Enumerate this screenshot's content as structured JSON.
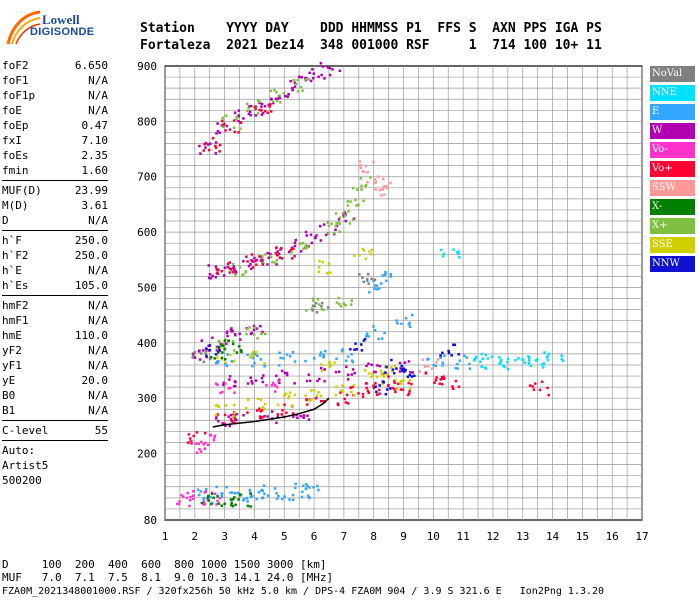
{
  "logo": {
    "line1": "Lowell",
    "line2": "DIGISONDE"
  },
  "header": {
    "labels": "Station    YYYY DAY    DDD HHMMSS P1  FFS S  AXN PPS IGA PS",
    "values": "Fortaleza  2021 Dez14  348 001000 RSF     1  714 100 10+ 11"
  },
  "params": {
    "group1": [
      {
        "k": "foF2",
        "v": "6.650"
      },
      {
        "k": "foF1",
        "v": "N/A"
      },
      {
        "k": "foF1p",
        "v": "N/A"
      },
      {
        "k": "foE",
        "v": "N/A"
      },
      {
        "k": "foEp",
        "v": "0.47"
      },
      {
        "k": "fxI",
        "v": "7.10"
      },
      {
        "k": "foEs",
        "v": "2.35"
      },
      {
        "k": "fmin",
        "v": "1.60"
      }
    ],
    "group2": [
      {
        "k": "MUF(D)",
        "v": "23.99"
      },
      {
        "k": "M(D)",
        "v": "3.61"
      },
      {
        "k": "D",
        "v": "N/A"
      }
    ],
    "group3": [
      {
        "k": "h`F",
        "v": "250.0"
      },
      {
        "k": "h`F2",
        "v": "250.0"
      },
      {
        "k": "h`E",
        "v": "N/A"
      },
      {
        "k": "h`Es",
        "v": "105.0"
      }
    ],
    "group4": [
      {
        "k": "hmF2",
        "v": "N/A"
      },
      {
        "k": "hmF1",
        "v": "N/A"
      },
      {
        "k": "hmE",
        "v": "110.0"
      },
      {
        "k": "yF2",
        "v": "N/A"
      },
      {
        "k": "yF1",
        "v": "N/A"
      },
      {
        "k": "yE",
        "v": "20.0"
      },
      {
        "k": "B0",
        "v": "N/A"
      },
      {
        "k": "B1",
        "v": "N/A"
      }
    ],
    "group5": [
      {
        "k": "C-level",
        "v": "55"
      }
    ],
    "group6": [
      {
        "k": "Auto:",
        "v": ""
      },
      {
        "k": "Artist5",
        "v": ""
      },
      {
        "k": "500200",
        "v": ""
      }
    ]
  },
  "legend": [
    {
      "label": "NoVal",
      "color": "#808080"
    },
    {
      "label": "NNE",
      "color": "#00e0ff"
    },
    {
      "label": "E",
      "color": "#33a6ff"
    },
    {
      "label": "W",
      "color": "#b000b0"
    },
    {
      "label": "Vo-",
      "color": "#ff33cc"
    },
    {
      "label": "Vo+",
      "color": "#ff0033"
    },
    {
      "label": "SSW",
      "color": "#ff9999"
    },
    {
      "label": "X-",
      "color": "#008000"
    },
    {
      "label": "X+",
      "color": "#80c040"
    },
    {
      "label": "SSE",
      "color": "#d0d000"
    },
    {
      "label": "NNW",
      "color": "#1010d0"
    }
  ],
  "footer": {
    "line1": "D     100  200  400  600  800 1000 1500 3000 [km]",
    "line2": "MUF   7.0  7.1  7.5  8.1  9.0 10.3 14.1 24.0 [MHz]",
    "line3": "FZA0M_2021348001000.RSF / 320fx256h 50 kHz 5.0 km / DPS-4 FZA0M 904 / 3.9 S 321.6 E   Ion2Png 1.3.20"
  },
  "chart_data": {
    "type": "scatter",
    "title": "",
    "xlabel": "",
    "ylabel": "",
    "xlim": [
      1,
      17
    ],
    "ylim": [
      80,
      900
    ],
    "xticks": [
      1,
      2,
      3,
      4,
      5,
      6,
      7,
      8,
      9,
      10,
      11,
      12,
      13,
      14,
      15,
      16,
      17
    ],
    "yticks": [
      80,
      200,
      300,
      400,
      500,
      600,
      700,
      800,
      900
    ],
    "grid": true,
    "series": [
      {
        "label": "W",
        "color": "#b000b0",
        "points": [
          [
            2.4,
            755
          ],
          [
            3.0,
            790
          ],
          [
            3.5,
            810
          ],
          [
            4.0,
            825
          ],
          [
            4.5,
            840
          ],
          [
            5.0,
            855
          ],
          [
            5.5,
            870
          ],
          [
            6.0,
            885
          ],
          [
            6.5,
            895
          ],
          [
            2.5,
            530
          ],
          [
            3.0,
            535
          ],
          [
            3.5,
            540
          ],
          [
            4.0,
            548
          ],
          [
            4.5,
            556
          ],
          [
            5.0,
            565
          ],
          [
            5.5,
            578
          ],
          [
            6.0,
            592
          ],
          [
            6.5,
            608
          ],
          [
            7.0,
            625
          ],
          [
            2.5,
            400
          ],
          [
            3.0,
            410
          ],
          [
            3.5,
            418
          ],
          [
            4.0,
            425
          ],
          [
            2.2,
            380
          ],
          [
            3.0,
            330
          ],
          [
            4.0,
            335
          ],
          [
            5.0,
            340
          ],
          [
            6.0,
            345
          ],
          [
            7.0,
            348
          ],
          [
            8.0,
            355
          ],
          [
            9.0,
            360
          ],
          [
            2.8,
            258
          ],
          [
            3.5,
            262
          ],
          [
            4.5,
            268
          ],
          [
            5.5,
            275
          ]
        ]
      },
      {
        "label": "X+",
        "color": "#80c040",
        "points": [
          [
            3.2,
            800
          ],
          [
            4.0,
            828
          ],
          [
            4.8,
            848
          ],
          [
            5.5,
            866
          ],
          [
            3.5,
            535
          ],
          [
            4.5,
            552
          ],
          [
            5.5,
            572
          ],
          [
            6.5,
            610
          ],
          [
            7.0,
            630
          ],
          [
            7.3,
            650
          ],
          [
            7.6,
            690
          ],
          [
            3.0,
            400
          ],
          [
            4.0,
            420
          ],
          [
            6.0,
            470
          ],
          [
            7.0,
            480
          ]
        ]
      },
      {
        "label": "Vo+",
        "color": "#ff0033",
        "points": [
          [
            2.5,
            760
          ],
          [
            3.2,
            795
          ],
          [
            4.2,
            830
          ],
          [
            3.0,
            540
          ],
          [
            4.0,
            550
          ],
          [
            5.0,
            562
          ],
          [
            3.0,
            265
          ],
          [
            4.0,
            272
          ],
          [
            5.0,
            280
          ],
          [
            6.0,
            290
          ],
          [
            7.0,
            300
          ],
          [
            7.5,
            310
          ],
          [
            8.0,
            320
          ],
          [
            8.5,
            330
          ],
          [
            9.0,
            320
          ],
          [
            10.0,
            340
          ],
          [
            10.5,
            330
          ],
          [
            2.0,
            230
          ],
          [
            13.5,
            320
          ]
        ]
      },
      {
        "label": "SSE",
        "color": "#d0d000",
        "points": [
          [
            3.0,
            280
          ],
          [
            4.0,
            290
          ],
          [
            5.0,
            300
          ],
          [
            6.0,
            310
          ],
          [
            7.0,
            320
          ],
          [
            8.0,
            340
          ],
          [
            8.5,
            350
          ],
          [
            9.0,
            330
          ],
          [
            3.0,
            372
          ],
          [
            4.0,
            375
          ],
          [
            6.5,
            360
          ],
          [
            7.6,
            560
          ],
          [
            6.4,
            540
          ]
        ]
      },
      {
        "label": "E",
        "color": "#33a6ff",
        "points": [
          [
            3.0,
            370
          ],
          [
            4.0,
            372
          ],
          [
            5.0,
            373
          ],
          [
            6.0,
            375
          ],
          [
            7.0,
            378
          ],
          [
            8.0,
            505
          ],
          [
            8.2,
            520
          ],
          [
            8.0,
            420
          ],
          [
            2.3,
            125
          ],
          [
            3.0,
            130
          ],
          [
            3.5,
            128
          ],
          [
            4.0,
            130
          ],
          [
            4.5,
            132
          ],
          [
            5.0,
            130
          ],
          [
            5.5,
            135
          ],
          [
            6.0,
            132
          ],
          [
            9.0,
            440
          ],
          [
            10.0,
            370
          ],
          [
            11.0,
            368
          ]
        ]
      },
      {
        "label": "NNE",
        "color": "#00e0ff",
        "points": [
          [
            11.5,
            370
          ],
          [
            12.0,
            368
          ],
          [
            12.5,
            365
          ],
          [
            13.0,
            372
          ],
          [
            13.5,
            370
          ],
          [
            14.0,
            375
          ],
          [
            10.5,
            560
          ]
        ]
      },
      {
        "label": "Vo-",
        "color": "#ff33cc",
        "points": [
          [
            1.7,
            120
          ],
          [
            2.0,
            122
          ],
          [
            2.5,
            123
          ],
          [
            2.0,
            215
          ],
          [
            2.5,
            225
          ],
          [
            3.0,
            320
          ],
          [
            4.5,
            325
          ]
        ]
      },
      {
        "label": "X-",
        "color": "#008000",
        "points": [
          [
            2.5,
            118
          ],
          [
            3.0,
            120
          ],
          [
            3.5,
            119
          ],
          [
            2.7,
            385
          ],
          [
            3.2,
            395
          ]
        ]
      },
      {
        "label": "NNW",
        "color": "#1010d0",
        "points": [
          [
            8.3,
            320
          ],
          [
            8.6,
            360
          ],
          [
            9.2,
            350
          ],
          [
            10.5,
            390
          ],
          [
            2.5,
            385
          ],
          [
            7.5,
            400
          ]
        ]
      },
      {
        "label": "NoVal",
        "color": "#808080",
        "points": [
          [
            2.2,
            380
          ],
          [
            6.2,
            470
          ],
          [
            7.8,
            520
          ]
        ]
      },
      {
        "label": "SSW",
        "color": "#ff9999",
        "points": [
          [
            7.8,
            720
          ],
          [
            8.0,
            690
          ],
          [
            8.2,
            680
          ],
          [
            9.8,
            360
          ]
        ]
      }
    ],
    "trace": {
      "color": "#000000",
      "points": [
        [
          2.6,
          248
        ],
        [
          3.0,
          252
        ],
        [
          3.5,
          255
        ],
        [
          4.0,
          258
        ],
        [
          4.5,
          262
        ],
        [
          5.0,
          266
        ],
        [
          5.5,
          272
        ],
        [
          6.0,
          280
        ],
        [
          6.3,
          290
        ],
        [
          6.5,
          300
        ]
      ]
    }
  }
}
